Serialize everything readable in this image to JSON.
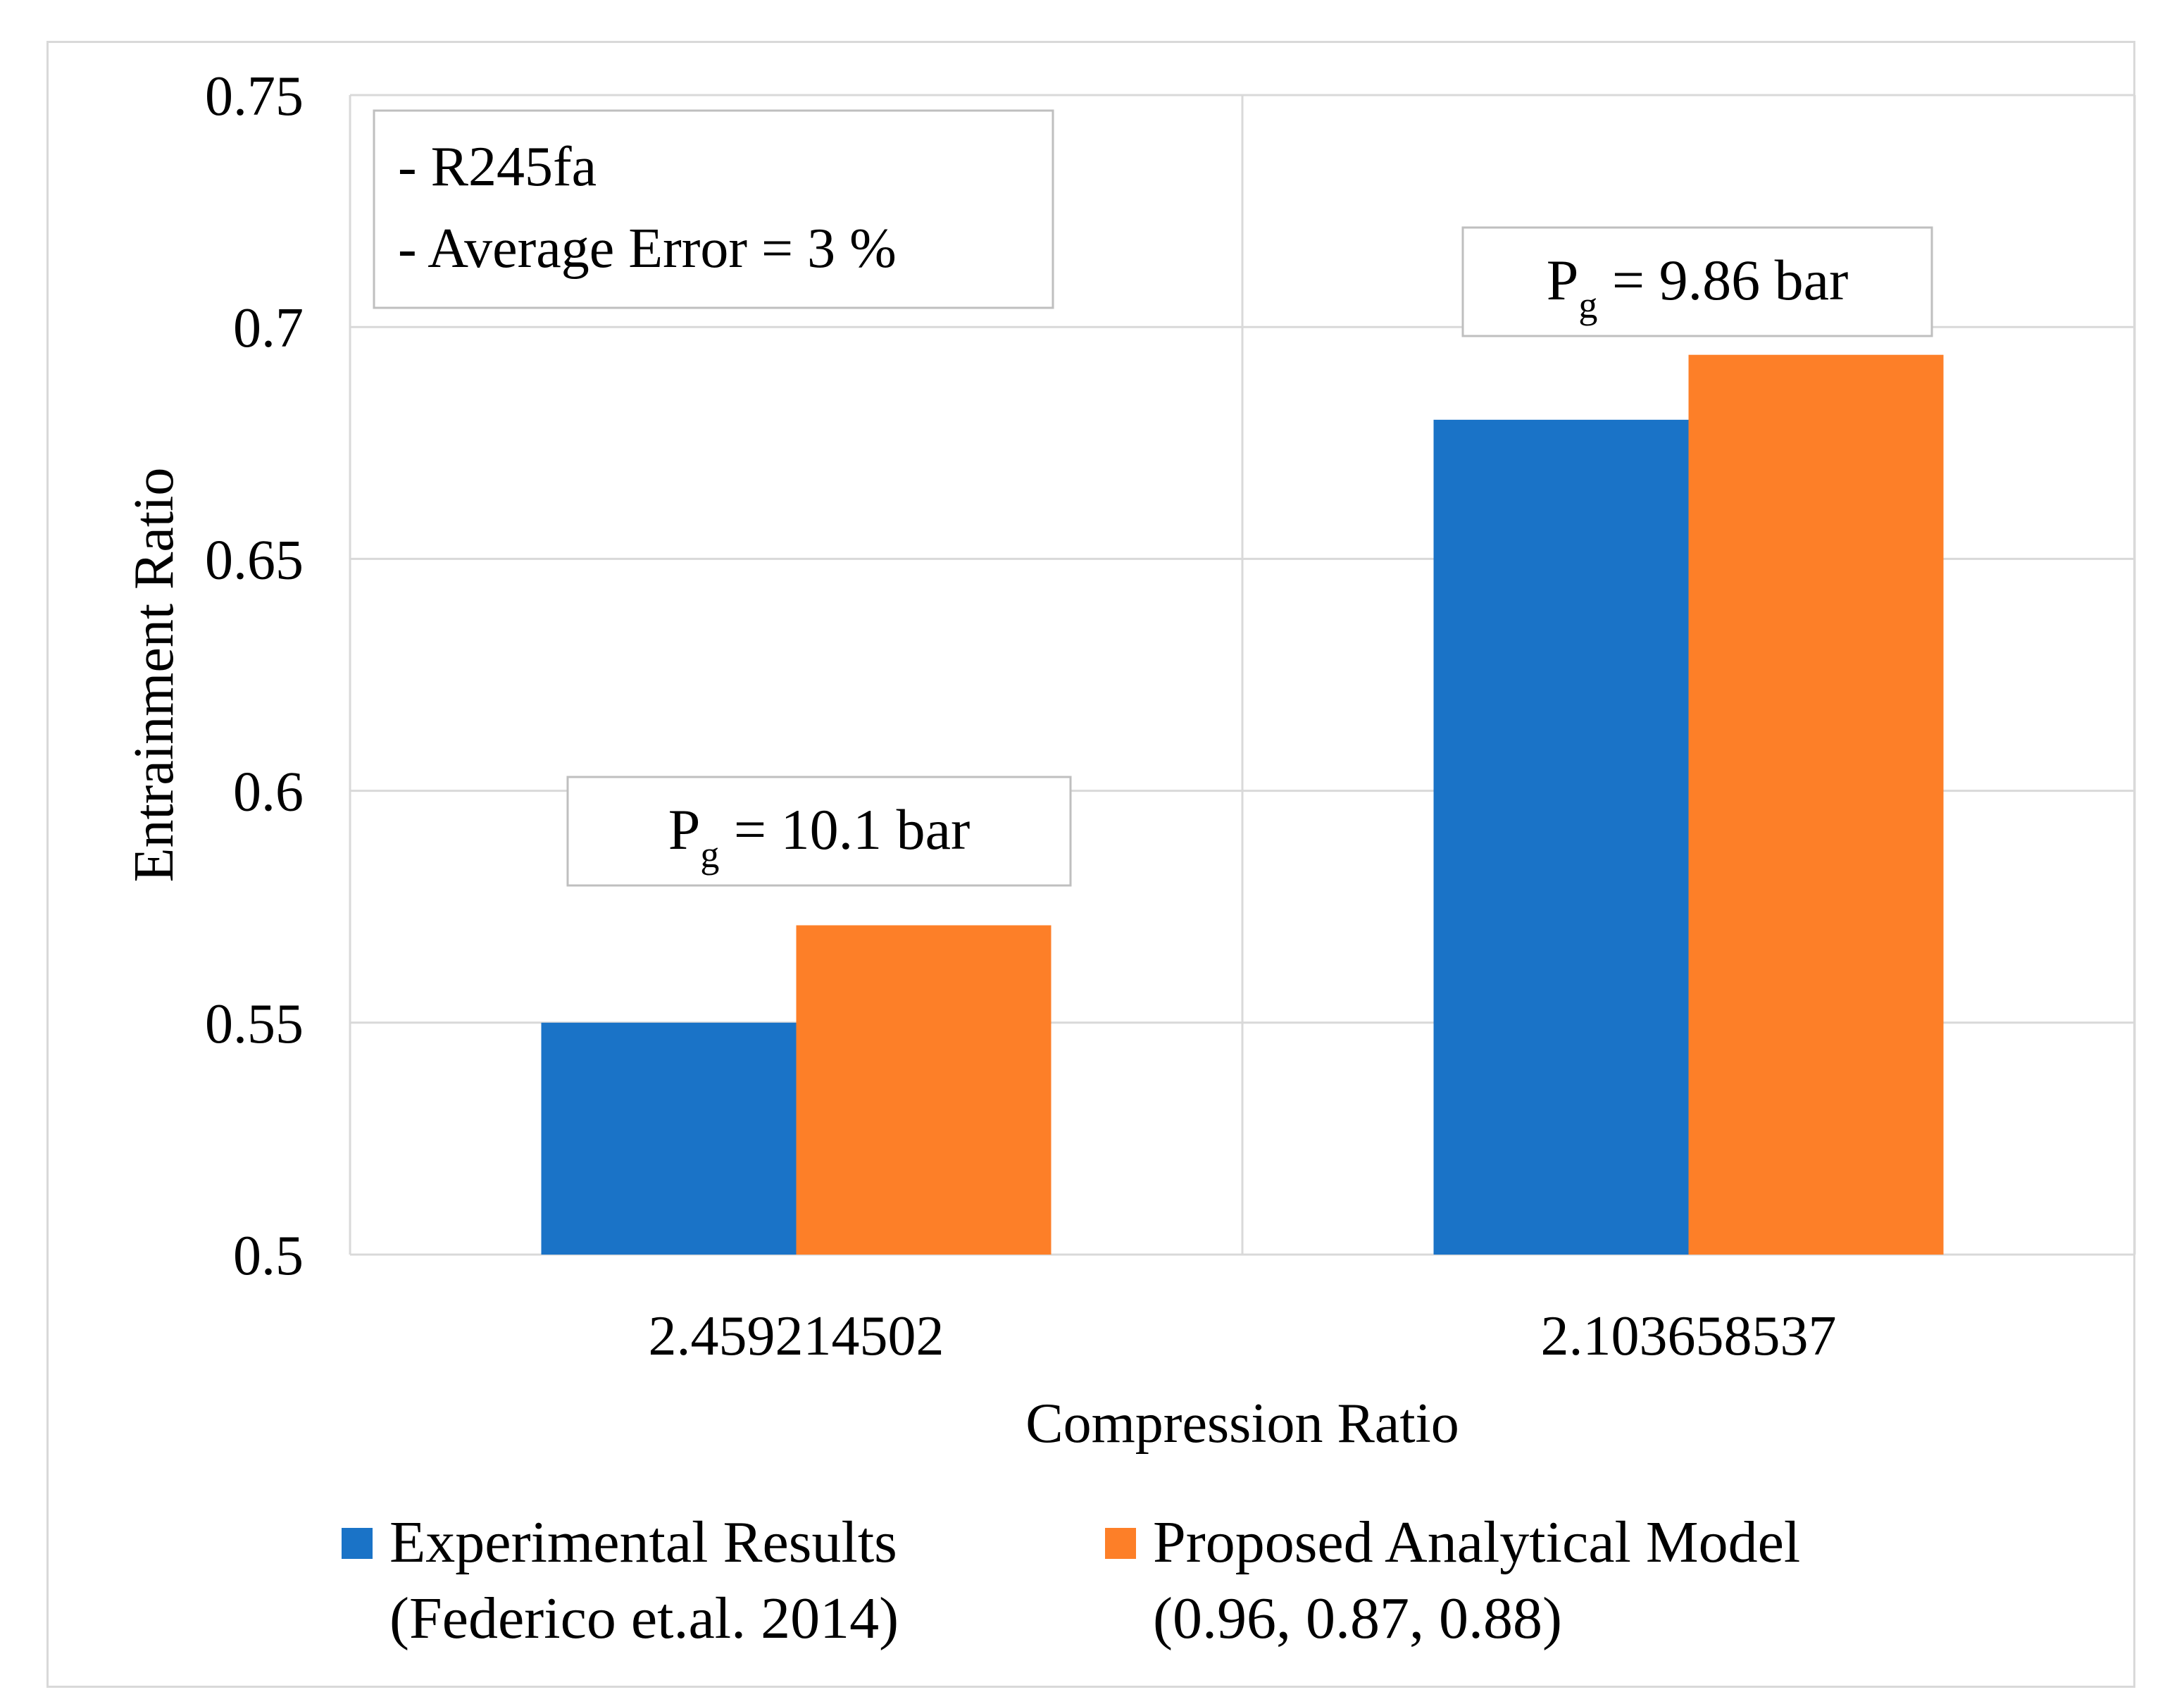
{
  "chart_data": {
    "type": "bar",
    "title": "",
    "xlabel": "Compression Ratio",
    "ylabel": "Entrainment Ratio",
    "ylim": [
      0.5,
      0.75
    ],
    "yticks": [
      0.5,
      0.55,
      0.6,
      0.65,
      0.7,
      0.75
    ],
    "ytick_labels": [
      "0.5",
      "0.55",
      "0.6",
      "0.65",
      "0.7",
      "0.75"
    ],
    "categories": [
      "2.459214502",
      "2.103658537"
    ],
    "series": [
      {
        "name": "Experimental Results (Federico et.al. 2014)",
        "legend_line1": "Experimental Results",
        "legend_line2": "(Federico et.al. 2014)",
        "color": "#1a73c7",
        "values": [
          0.55,
          0.68
        ]
      },
      {
        "name": "Proposed Analytical Model (0.96, 0.87, 0.88)",
        "legend_line1": "Proposed Analytical Model",
        "legend_line2": "(0.96, 0.87, 0.88)",
        "color": "#fd7f28",
        "values": [
          0.571,
          0.694
        ]
      }
    ],
    "grid": true,
    "legend_position": "bottom",
    "note_box": {
      "line1": "- R245fa",
      "line2": "- Average Error = 3 %"
    },
    "annotations": [
      {
        "category": "2.459214502",
        "main": "P",
        "sub": "g",
        "rest": " = 10.1 bar"
      },
      {
        "category": "2.103658537",
        "main": "P",
        "sub": "g",
        "rest": " = 9.86 bar"
      }
    ]
  }
}
